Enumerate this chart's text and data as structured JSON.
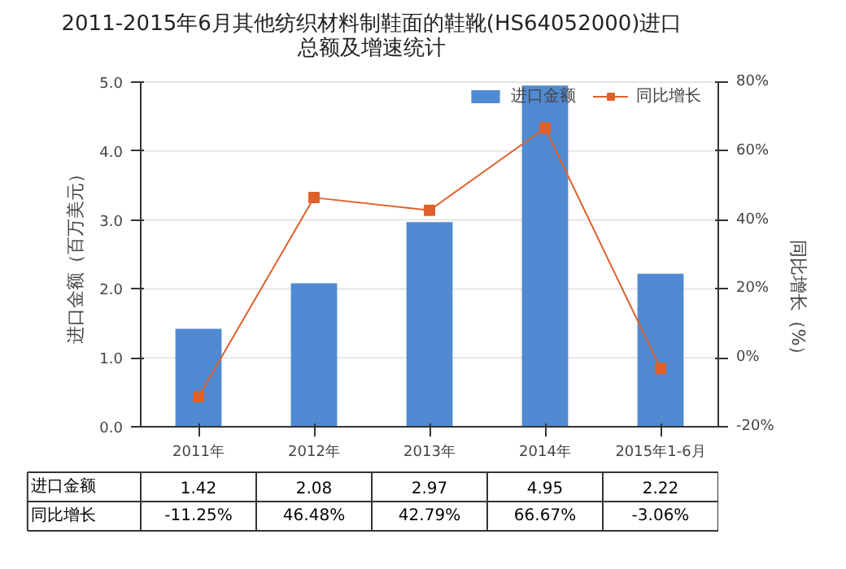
{
  "chart_data": {
    "type": "bar",
    "title": "2011-2015年6月其他纺织材料制鞋面的鞋靴(HS64052000)进口总额及增速统计",
    "categories": [
      "2011年",
      "2012年",
      "2013年",
      "2014年",
      "2015年1-6月"
    ],
    "ylabel": "进口金额（百万美元）",
    "y2label": "同比增长（%）",
    "ylim": [
      0,
      5
    ],
    "yticks": [
      {
        "value": 0,
        "label": "0.0"
      },
      {
        "value": 1,
        "label": "1.0"
      },
      {
        "value": 2,
        "label": "2.0"
      },
      {
        "value": 3,
        "label": "3.0"
      },
      {
        "value": 4,
        "label": "4.0"
      },
      {
        "value": 5,
        "label": "5.0"
      }
    ],
    "y2lim": [
      -20,
      80
    ],
    "y2ticks": [
      {
        "value": -20,
        "label": "-20%"
      },
      {
        "value": 0,
        "label": "0%"
      },
      {
        "value": 20,
        "label": "20%"
      },
      {
        "value": 40,
        "label": "40%"
      },
      {
        "value": 60,
        "label": "60%"
      },
      {
        "value": 80,
        "label": "80%"
      }
    ],
    "series": [
      {
        "name": "进口金额",
        "color": "#4f8ad2",
        "values": [
          1.42,
          2.08,
          2.97,
          4.95,
          2.22
        ],
        "value_labels": [
          "1.42",
          "2.08",
          "2.97",
          "4.95",
          "2.22"
        ]
      },
      {
        "name": "同比增长",
        "type": "line",
        "axis": "y2",
        "color": "#e0602a",
        "marker": "square",
        "values": [
          -11.25,
          46.48,
          42.79,
          66.67,
          -3.06
        ],
        "value_labels": [
          "-11.25%",
          "46.48%",
          "42.79%",
          "66.67%",
          "-3.06%"
        ]
      }
    ],
    "grid": "y",
    "legend": "top right"
  }
}
